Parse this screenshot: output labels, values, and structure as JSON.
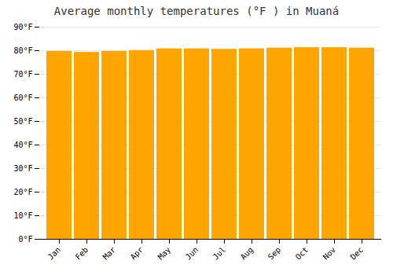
{
  "chart_data": {
    "type": "bar",
    "title": "Average monthly temperatures (°F ) in Muaná",
    "categories": [
      "Jan",
      "Feb",
      "Mar",
      "Apr",
      "May",
      "Jun",
      "Jul",
      "Aug",
      "Sep",
      "Oct",
      "Nov",
      "Dec"
    ],
    "values": [
      79.7,
      79.3,
      79.7,
      80.1,
      80.8,
      80.8,
      80.6,
      80.8,
      81.1,
      81.3,
      81.3,
      81.1
    ],
    "color": "#FFA500",
    "ylim": [
      0,
      90
    ],
    "yticks": [
      {
        "value": 0,
        "label": "0°F"
      },
      {
        "value": 10,
        "label": "10°F"
      },
      {
        "value": 20,
        "label": "20°F"
      },
      {
        "value": 30,
        "label": "30°F"
      },
      {
        "value": 40,
        "label": "40°F"
      },
      {
        "value": 50,
        "label": "50°F"
      },
      {
        "value": 60,
        "label": "60°F"
      },
      {
        "value": 70,
        "label": "70°F"
      },
      {
        "value": 80,
        "label": "80°F"
      },
      {
        "value": 90,
        "label": "90°F"
      }
    ],
    "grid": true
  }
}
